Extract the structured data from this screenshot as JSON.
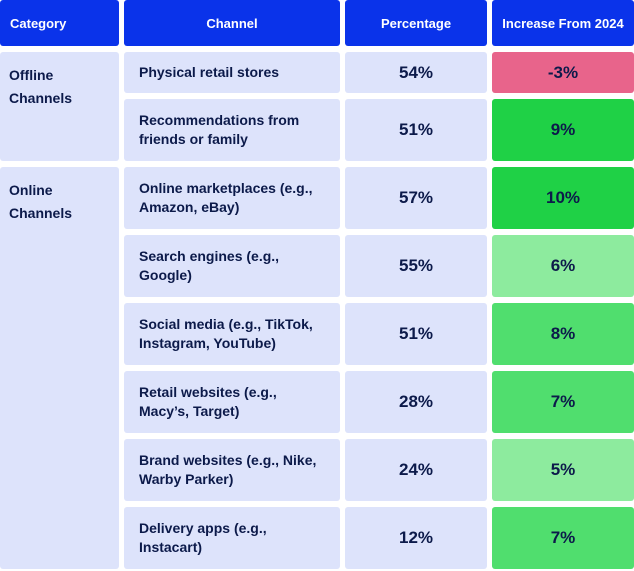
{
  "table": {
    "headers": [
      "Category",
      "Channel",
      "Percentage",
      "Increase From 2024"
    ],
    "groups": [
      {
        "category": "Offline Channels",
        "rows": [
          {
            "channel": "Physical retail stores",
            "percentage": "54%",
            "increase": "-3%",
            "color": "#e8648b"
          },
          {
            "channel": "Recommendations from friends or family",
            "percentage": "51%",
            "increase": "9%",
            "color": "#1fd146"
          }
        ]
      },
      {
        "category": "Online Channels",
        "rows": [
          {
            "channel": "Online marketplaces (e.g., Amazon, eBay)",
            "percentage": "57%",
            "increase": "10%",
            "color": "#1fd146"
          },
          {
            "channel": "Search engines (e.g., Google)",
            "percentage": "55%",
            "increase": "6%",
            "color": "#8deb9e"
          },
          {
            "channel": "Social media (e.g., TikTok, Instagram, YouTube)",
            "percentage": "51%",
            "increase": "8%",
            "color": "#50de6e"
          },
          {
            "channel": "Retail websites (e.g., Macy’s, Target)",
            "percentage": "28%",
            "increase": "7%",
            "color": "#50de6e"
          },
          {
            "channel": "Brand websites (e.g., Nike, Warby Parker)",
            "percentage": "24%",
            "increase": "5%",
            "color": "#8deb9e"
          },
          {
            "channel": "Delivery apps (e.g., Instacart)",
            "percentage": "12%",
            "increase": "7%",
            "color": "#50de6e"
          }
        ]
      }
    ]
  }
}
